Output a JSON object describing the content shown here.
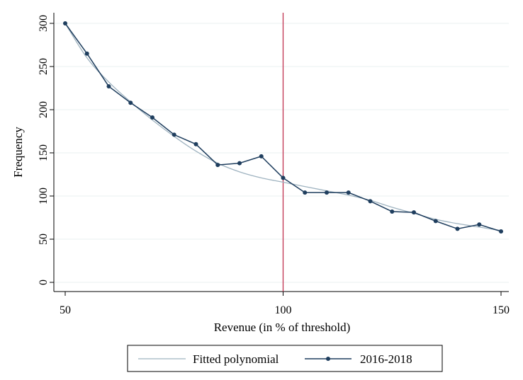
{
  "chart_data": {
    "type": "line",
    "xlabel": "Revenue (in % of threshold)",
    "ylabel": "Frequency",
    "xlim": [
      50,
      150
    ],
    "ylim": [
      0,
      300
    ],
    "x_ticks": [
      "50",
      "100",
      "150"
    ],
    "y_ticks": [
      "0",
      "50",
      "100",
      "150",
      "200",
      "250",
      "300"
    ],
    "grid": "horizontal",
    "reference_line": {
      "x": 100,
      "color": "#c0304f"
    },
    "legend_position": "bottom",
    "series": [
      {
        "name": "Fitted polynomial",
        "style": "smooth line",
        "color": "#9fb3c0",
        "x": [
          50,
          55,
          60,
          65,
          70,
          75,
          80,
          85,
          90,
          95,
          100,
          105,
          110,
          115,
          120,
          125,
          130,
          135,
          140,
          145,
          150
        ],
        "y": [
          300,
          260,
          232,
          209,
          188,
          169,
          152,
          138,
          128,
          121,
          116,
          111,
          106,
          101,
          95,
          87,
          80,
          73,
          68,
          64,
          60
        ]
      },
      {
        "name": "2016-2018",
        "style": "line with markers",
        "color": "#1f3e5e",
        "x": [
          50,
          55,
          60,
          65,
          70,
          75,
          80,
          85,
          90,
          95,
          100,
          105,
          110,
          115,
          120,
          125,
          130,
          135,
          140,
          145,
          150
        ],
        "y": [
          300,
          265,
          227,
          208,
          191,
          171,
          160,
          136,
          138,
          146,
          121,
          104,
          104,
          104,
          94,
          82,
          81,
          71,
          62,
          67,
          59
        ]
      }
    ]
  }
}
